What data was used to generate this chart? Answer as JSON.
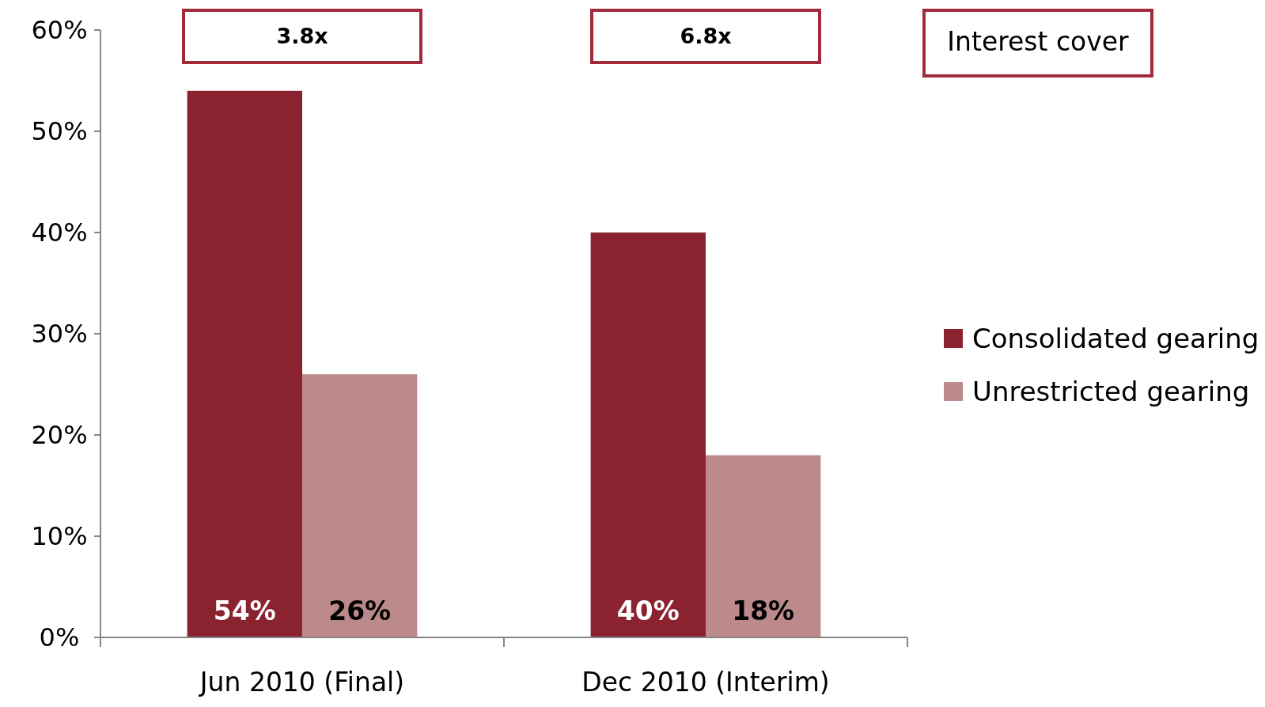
{
  "chart_data": {
    "type": "bar",
    "categories": [
      "Jun 2010 (Final)",
      "Dec 2010 (Interim)"
    ],
    "series": [
      {
        "name": "Consolidated gearing",
        "color": "#8b2230",
        "values": [
          54,
          40
        ],
        "value_labels": [
          "54%",
          "40%"
        ]
      },
      {
        "name": "Unrestricted gearing",
        "color": "#bc8a8b",
        "values": [
          26,
          18
        ],
        "value_labels": [
          "26%",
          "18%"
        ]
      }
    ],
    "ylim": [
      0,
      60
    ],
    "yticks": [
      {
        "value": 0,
        "label": "0%"
      },
      {
        "value": 10,
        "label": "10%"
      },
      {
        "value": 20,
        "label": "20%"
      },
      {
        "value": 30,
        "label": "30%"
      },
      {
        "value": 40,
        "label": "40%"
      },
      {
        "value": 50,
        "label": "50%"
      },
      {
        "value": 60,
        "label": "60%"
      }
    ],
    "annotations": [
      "3.8x",
      "6.8x",
      "Interest cover"
    ],
    "legend": "right",
    "grid": false
  }
}
